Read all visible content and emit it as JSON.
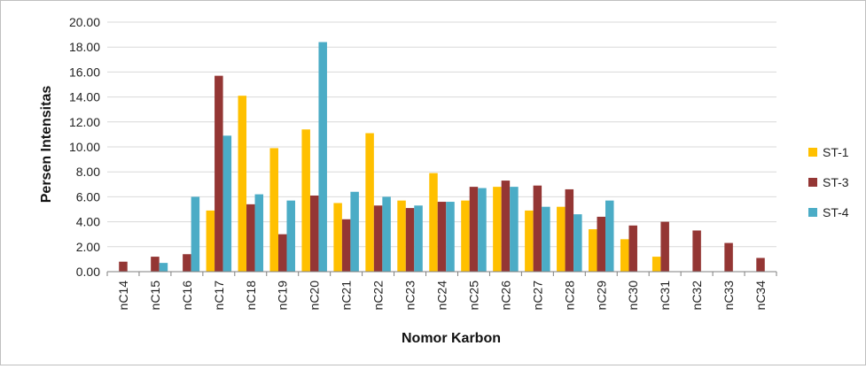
{
  "chart_data": {
    "type": "bar",
    "xlabel": "Nomor Karbon",
    "ylabel": "Persen Intensitas",
    "ylim": [
      0,
      20
    ],
    "yticks": [
      "0.00",
      "2.00",
      "4.00",
      "6.00",
      "8.00",
      "10.00",
      "12.00",
      "14.00",
      "16.00",
      "18.00",
      "20.00"
    ],
    "grid": true,
    "legend_position": "right",
    "categories": [
      "nC14",
      "nC15",
      "nC16",
      "nC17",
      "nC18",
      "nC19",
      "nC20",
      "nC21",
      "nC22",
      "nC23",
      "nC24",
      "nC25",
      "nC26",
      "nC27",
      "nC28",
      "nC29",
      "nC30",
      "nC31",
      "nC32",
      "nC33",
      "nC34"
    ],
    "series": [
      {
        "name": "ST-1",
        "color": "#FFC000",
        "values": [
          0,
          0,
          0,
          4.9,
          14.1,
          9.9,
          11.4,
          5.5,
          11.1,
          5.7,
          7.9,
          5.7,
          6.8,
          4.9,
          5.2,
          3.4,
          2.6,
          1.2,
          0,
          0,
          0
        ]
      },
      {
        "name": "ST-3",
        "color": "#943634",
        "values": [
          0.8,
          1.2,
          1.4,
          15.7,
          5.4,
          3.0,
          6.1,
          4.2,
          5.3,
          5.1,
          5.6,
          6.8,
          7.3,
          6.9,
          6.6,
          4.4,
          3.7,
          4.0,
          3.3,
          2.3,
          1.1
        ]
      },
      {
        "name": "ST-4",
        "color": "#4BACC6",
        "values": [
          0,
          0.7,
          6.0,
          10.9,
          6.2,
          5.7,
          18.4,
          6.4,
          6.0,
          5.3,
          5.6,
          6.7,
          6.8,
          5.2,
          4.6,
          5.7,
          0,
          0,
          0,
          0,
          0
        ]
      }
    ]
  }
}
